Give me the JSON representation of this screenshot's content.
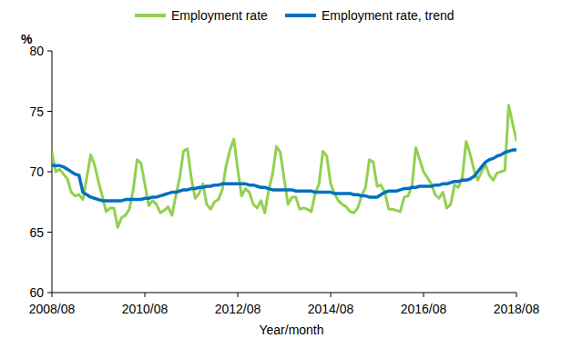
{
  "chart_data": {
    "type": "line",
    "y_unit_label": "%",
    "x_label": "Year/month",
    "categories": [
      "2008/08",
      null,
      null,
      null,
      null,
      null,
      null,
      null,
      null,
      null,
      null,
      null,
      null,
      null,
      null,
      null,
      null,
      null,
      null,
      null,
      null,
      null,
      null,
      null,
      "2010/08",
      null,
      null,
      null,
      null,
      null,
      null,
      null,
      null,
      null,
      null,
      null,
      null,
      null,
      null,
      null,
      null,
      null,
      null,
      null,
      null,
      null,
      null,
      null,
      "2012/08",
      null,
      null,
      null,
      null,
      null,
      null,
      null,
      null,
      null,
      null,
      null,
      null,
      null,
      null,
      null,
      null,
      null,
      null,
      null,
      null,
      null,
      null,
      null,
      "2014/08",
      null,
      null,
      null,
      null,
      null,
      null,
      null,
      null,
      null,
      null,
      null,
      null,
      null,
      null,
      null,
      null,
      null,
      null,
      null,
      null,
      null,
      null,
      null,
      "2016/08",
      null,
      null,
      null,
      null,
      null,
      null,
      null,
      null,
      null,
      null,
      null,
      null,
      null,
      null,
      null,
      null,
      null,
      null,
      null,
      null,
      null,
      null,
      null,
      "2018/08"
    ],
    "series": [
      {
        "name": "Employment rate",
        "color": "#92d050",
        "values": [
          71.6,
          70.0,
          70.2,
          69.8,
          69.4,
          68.3,
          68.0,
          68.1,
          67.7,
          69.5,
          71.4,
          70.6,
          69.2,
          68.0,
          66.7,
          67.0,
          67.0,
          65.4,
          66.2,
          66.4,
          66.9,
          68.5,
          71.0,
          70.7,
          69.0,
          67.2,
          67.6,
          67.3,
          66.6,
          66.8,
          67.1,
          66.4,
          68.0,
          69.5,
          71.7,
          71.9,
          69.5,
          67.8,
          68.2,
          69.0,
          67.3,
          66.9,
          67.5,
          67.7,
          68.5,
          70.5,
          71.8,
          72.7,
          70.2,
          68.0,
          68.6,
          68.3,
          67.3,
          67.0,
          67.6,
          66.6,
          68.5,
          69.8,
          72.1,
          71.6,
          69.4,
          67.3,
          67.9,
          67.9,
          66.9,
          67.0,
          66.9,
          66.7,
          68.2,
          69.0,
          71.7,
          71.3,
          69.0,
          68.2,
          67.6,
          67.3,
          67.1,
          66.7,
          66.6,
          67.0,
          68.0,
          68.7,
          71.0,
          70.8,
          68.8,
          68.9,
          68.3,
          66.9,
          66.9,
          66.8,
          66.7,
          67.9,
          68.0,
          68.8,
          72.0,
          71.0,
          70.0,
          69.5,
          69.0,
          68.1,
          67.8,
          68.3,
          67.0,
          67.3,
          68.9,
          68.7,
          69.5,
          72.5,
          71.5,
          70.2,
          69.3,
          70.0,
          70.6,
          69.7,
          69.3,
          69.9,
          70.0,
          70.1,
          75.5,
          74.0,
          72.6
        ]
      },
      {
        "name": "Employment rate, trend",
        "color": "#0070c0",
        "values": [
          70.5,
          70.5,
          70.5,
          70.4,
          70.2,
          70.0,
          69.8,
          69.7,
          68.3,
          68.1,
          67.9,
          67.8,
          67.7,
          67.6,
          67.6,
          67.6,
          67.6,
          67.6,
          67.6,
          67.7,
          67.7,
          67.7,
          67.7,
          67.7,
          67.8,
          67.8,
          67.9,
          67.9,
          68.0,
          68.1,
          68.2,
          68.3,
          68.3,
          68.4,
          68.5,
          68.5,
          68.6,
          68.6,
          68.7,
          68.7,
          68.8,
          68.8,
          68.9,
          68.9,
          69.0,
          69.0,
          69.0,
          69.0,
          69.0,
          69.0,
          69.0,
          68.9,
          68.9,
          68.8,
          68.7,
          68.7,
          68.6,
          68.5,
          68.5,
          68.5,
          68.5,
          68.5,
          68.5,
          68.4,
          68.4,
          68.4,
          68.4,
          68.4,
          68.3,
          68.3,
          68.3,
          68.3,
          68.3,
          68.2,
          68.2,
          68.2,
          68.2,
          68.2,
          68.1,
          68.1,
          68.0,
          68.0,
          67.9,
          67.9,
          67.9,
          68.1,
          68.3,
          68.4,
          68.4,
          68.4,
          68.5,
          68.6,
          68.6,
          68.7,
          68.7,
          68.8,
          68.8,
          68.8,
          68.8,
          68.9,
          68.9,
          69.0,
          69.0,
          69.1,
          69.2,
          69.2,
          69.3,
          69.3,
          69.4,
          69.6,
          70.0,
          70.4,
          70.8,
          71.0,
          71.1,
          71.3,
          71.4,
          71.6,
          71.7,
          71.8,
          71.8
        ]
      }
    ],
    "ylim": [
      60,
      80
    ],
    "yticks": [
      60,
      65,
      70,
      75,
      80
    ],
    "grid": false,
    "legend": "top"
  }
}
